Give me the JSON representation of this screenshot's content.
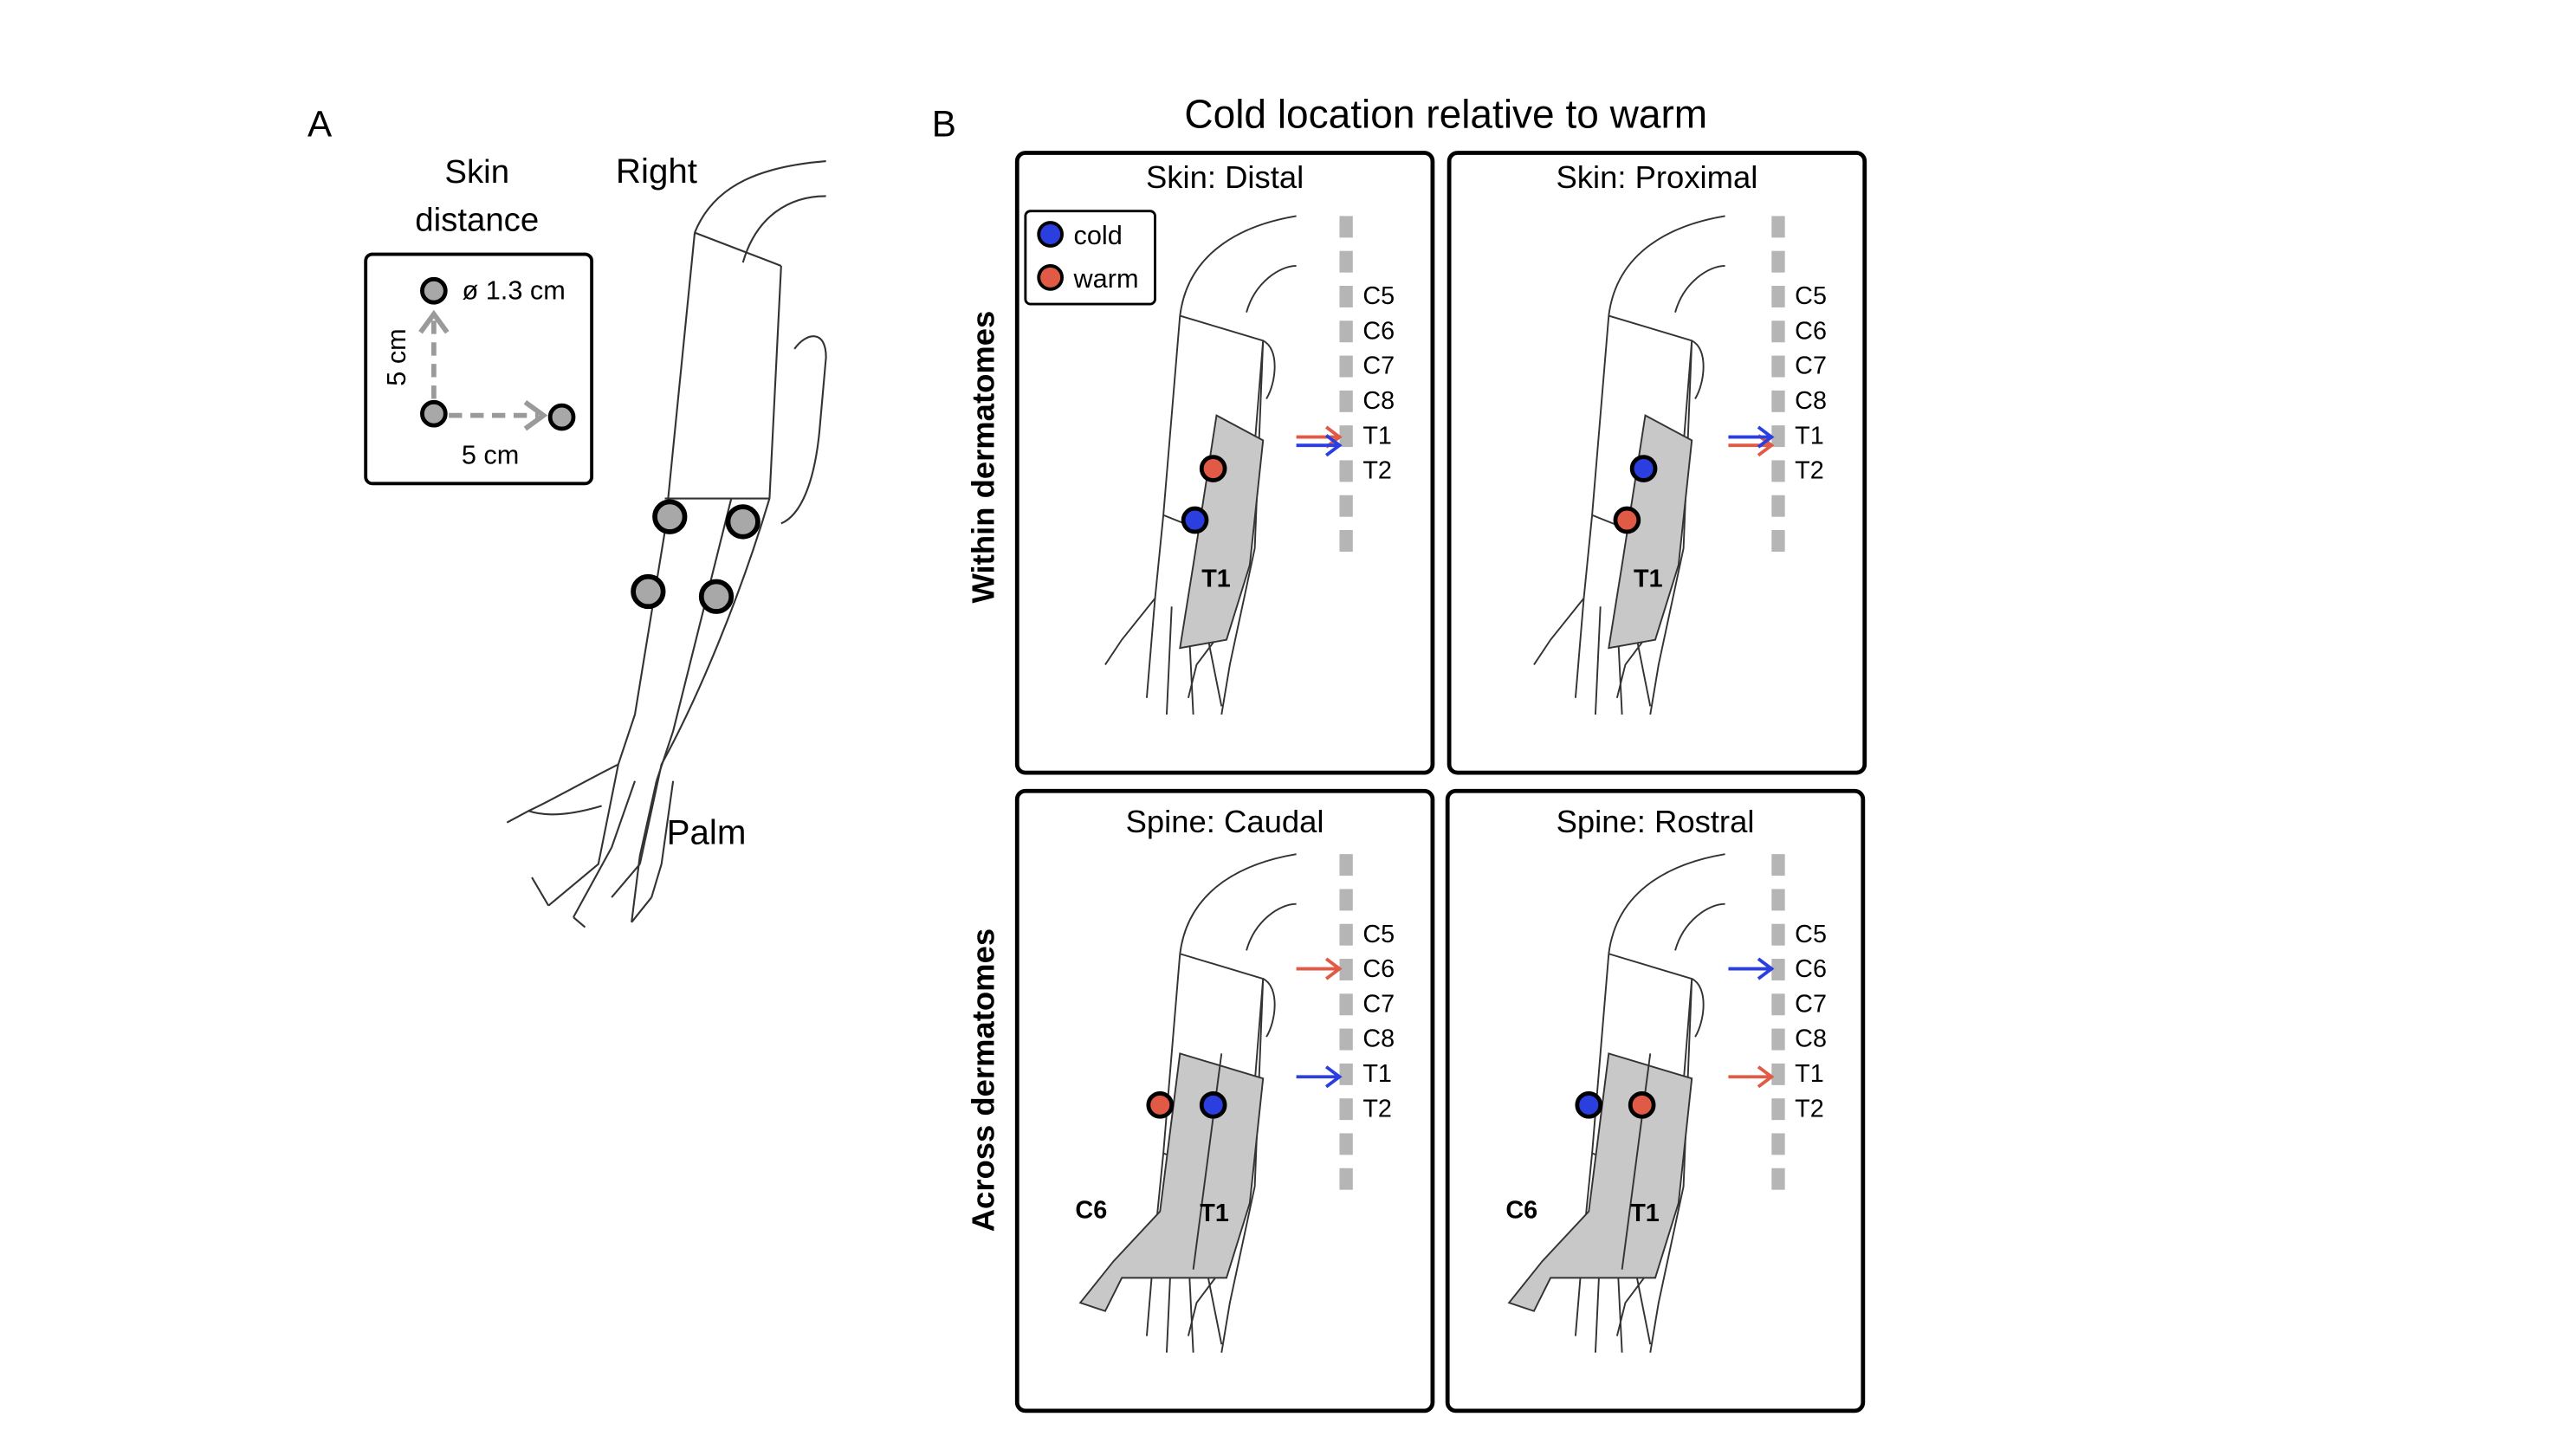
{
  "panel_a": {
    "letter": "A",
    "skin_distance_title_line1": "Skin",
    "skin_distance_title_line2": "distance",
    "diameter_label": "ø 1.3 cm",
    "vertical_distance": "5 cm",
    "horizontal_distance": "5 cm",
    "side_label": "Right",
    "palm_label": "Palm"
  },
  "panel_b": {
    "letter": "B",
    "title": "Cold location relative to warm",
    "row_labels": [
      "Within dermatomes",
      "Across dermatomes"
    ],
    "legend": {
      "cold": "cold",
      "warm": "warm"
    },
    "spine_segments": [
      "C5",
      "C6",
      "C7",
      "C8",
      "T1",
      "T2"
    ],
    "subpanels": [
      {
        "title": "Skin: Distal",
        "dermatome_labels": [
          "T1"
        ]
      },
      {
        "title": "Skin: Proximal",
        "dermatome_labels": [
          "T1"
        ]
      },
      {
        "title": "Spine: Caudal",
        "dermatome_labels": [
          "C6",
          "T1"
        ]
      },
      {
        "title": "Spine: Rostral",
        "dermatome_labels": [
          "C6",
          "T1"
        ]
      }
    ]
  },
  "colors": {
    "cold": "#2b3fe0",
    "warm": "#e05a45",
    "probe_gray": "#a8a8a8",
    "dermatome_fill": "#c8c8c8",
    "spine_dash": "#b5b5b5"
  }
}
